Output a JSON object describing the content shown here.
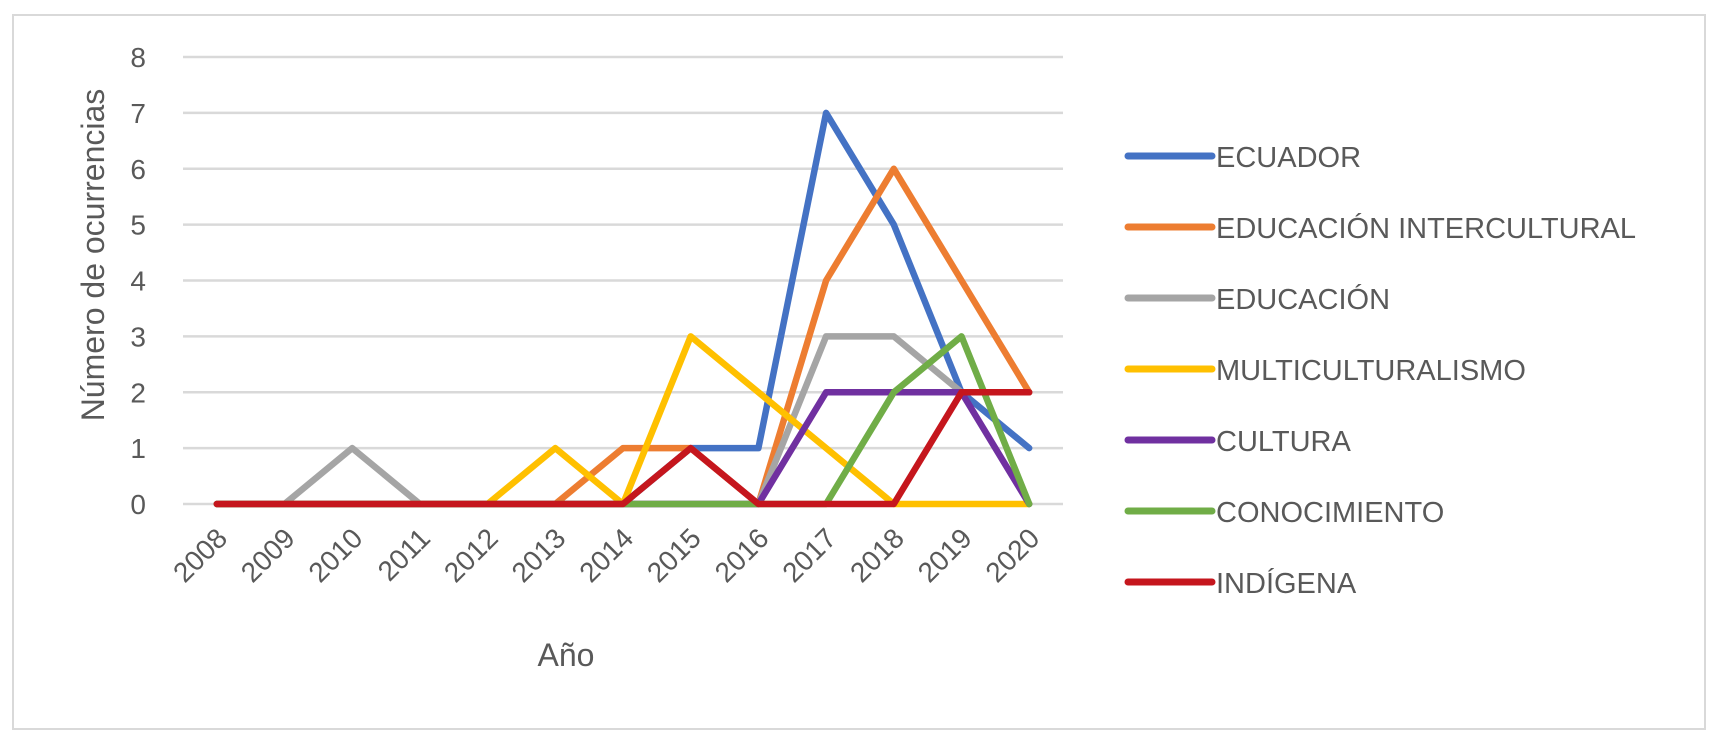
{
  "chart_data": {
    "type": "line",
    "title": "",
    "xlabel": "Año",
    "ylabel": "Número de ocurrencias",
    "ylim": [
      0,
      8
    ],
    "yticks": [
      0,
      1,
      2,
      3,
      4,
      5,
      6,
      7,
      8
    ],
    "grid": true,
    "legend_position": "right",
    "categories": [
      "2008",
      "2009",
      "2010",
      "2011",
      "2012",
      "2013",
      "2014",
      "2015",
      "2016",
      "2017",
      "2018",
      "2019",
      "2020"
    ],
    "series": [
      {
        "name": "ECUADOR",
        "color": "#4472C4",
        "values": [
          0,
          0,
          0,
          0,
          0,
          0,
          0,
          1,
          1,
          7,
          5,
          2,
          1
        ]
      },
      {
        "name": "EDUCACIÓN INTERCULTURAL",
        "color": "#ED7D31",
        "values": [
          0,
          0,
          0,
          0,
          0,
          0,
          1,
          1,
          0,
          4,
          6,
          4,
          2
        ]
      },
      {
        "name": "EDUCACIÓN",
        "color": "#A5A5A5",
        "values": [
          0,
          0,
          1,
          0,
          0,
          0,
          0,
          0,
          0,
          3,
          3,
          2,
          2
        ]
      },
      {
        "name": "MULTICULTURALISMO",
        "color": "#FFC000",
        "values": [
          0,
          0,
          0,
          0,
          0,
          1,
          0,
          3,
          2,
          1,
          0,
          0,
          0
        ]
      },
      {
        "name": "CULTURA",
        "color": "#7030A0",
        "values": [
          0,
          0,
          0,
          0,
          0,
          0,
          0,
          0,
          0,
          2,
          2,
          2,
          0
        ]
      },
      {
        "name": "CONOCIMIENTO",
        "color": "#70AD47",
        "values": [
          0,
          0,
          0,
          0,
          0,
          0,
          0,
          0,
          0,
          0,
          2,
          3,
          0
        ]
      },
      {
        "name": "INDÍGENA",
        "color": "#C5161D",
        "values": [
          0,
          0,
          0,
          0,
          0,
          0,
          0,
          1,
          0,
          0,
          0,
          2,
          2
        ]
      }
    ]
  },
  "colors": {
    "gridline": "#d9d9d9",
    "text": "#595959",
    "border": "#d9d9d9"
  }
}
